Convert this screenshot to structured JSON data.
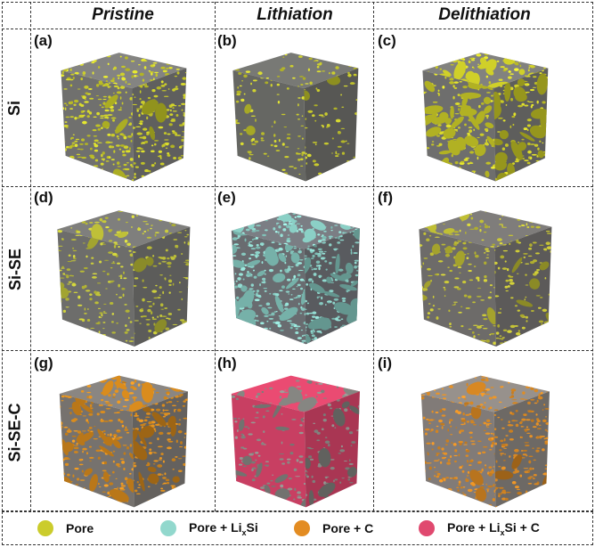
{
  "columns": [
    "Pristine",
    "Lithiation",
    "Delithiation"
  ],
  "rows": [
    "Si",
    "Si-SE",
    "Si-SE-C"
  ],
  "panels": [
    {
      "label": "(a)",
      "base": "#7a7a78",
      "spot": "#cfd12a",
      "density": 0.55,
      "blob": 0.1
    },
    {
      "label": "(b)",
      "base": "#6f706c",
      "spot": "#c9cb2e",
      "density": 0.22,
      "blob": 0.05
    },
    {
      "label": "(c)",
      "base": "#787876",
      "spot": "#d6d62a",
      "density": 0.35,
      "blob": 0.9
    },
    {
      "label": "(d)",
      "base": "#767674",
      "spot": "#c4c63a",
      "density": 0.35,
      "blob": 0.1
    },
    {
      "label": "(e)",
      "base": "#72757a",
      "spot": "#8fd6cc",
      "density": 0.55,
      "blob": 0.7
    },
    {
      "label": "(f)",
      "base": "#767472",
      "spot": "#c6c436",
      "density": 0.3,
      "blob": 0.15
    },
    {
      "label": "(g)",
      "base": "#807c78",
      "spot": "#e0901e",
      "density": 0.45,
      "blob": 0.5
    },
    {
      "label": "(h)",
      "base": "#d9456a",
      "spot": "#8a8a86",
      "density": 0.25,
      "blob": 0.3
    },
    {
      "label": "(i)",
      "base": "#8c8682",
      "spot": "#de8c24",
      "density": 0.5,
      "blob": 0.1
    }
  ],
  "legend": [
    {
      "prefix": "Pore",
      "sub": "",
      "suffix": "",
      "color": "#cbcc2c"
    },
    {
      "prefix": "Pore + Li",
      "sub": "x",
      "suffix": "Si",
      "color": "#92d8cd"
    },
    {
      "prefix": "Pore + C",
      "sub": "",
      "suffix": "",
      "color": "#e38c22"
    },
    {
      "prefix": "Pore + Li",
      "sub": "x",
      "suffix": "Si + C",
      "color": "#e0496f"
    }
  ]
}
